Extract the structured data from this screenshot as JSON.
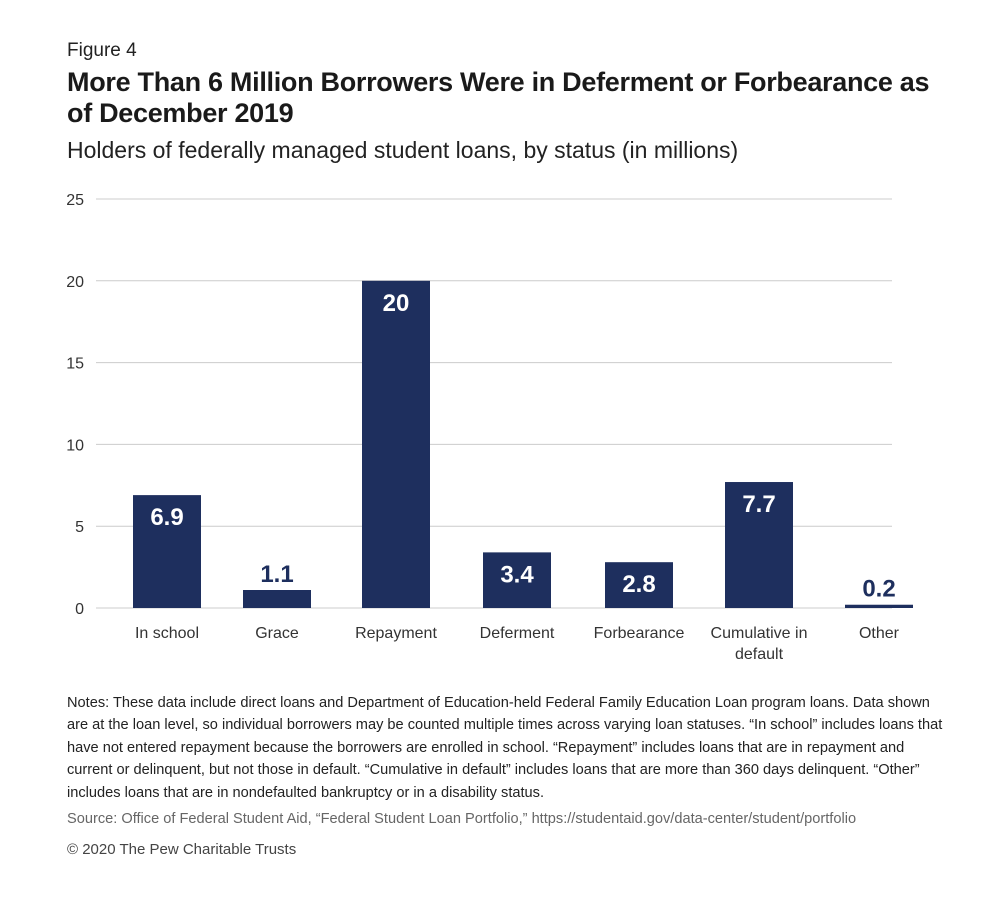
{
  "figure_label": "Figure 4",
  "title": "More Than 6 Million Borrowers Were in Deferment or Forbearance as of December 2019",
  "subtitle": "Holders of federally managed student loans, by status (in millions)",
  "notes": "Notes: These data include direct loans and Department of Education-held Federal Family Education Loan program loans. Data shown are at the loan level, so individual borrowers may be counted multiple times across varying loan statuses. “In school” includes loans that have not entered repayment because the borrowers are enrolled in school. “Repayment” includes loans that are in repayment and current or delinquent, but not those in default. “Cumulative in default” includes loans that are more than 360 days delinquent. “Other” includes loans that are in nondefaulted bankruptcy or in a disability status.",
  "source": "Source: Office of Federal Student Aid, “Federal Student Loan Portfolio,” https://studentaid.gov/data-center/student/portfolio",
  "copyright": "© 2020 The Pew Charitable Trusts",
  "colors": {
    "bar": "#1e2f5e",
    "grid": "#cccccc",
    "label_inside": "#ffffff"
  },
  "chart_data": {
    "type": "bar",
    "categories": [
      "In school",
      "Grace",
      "Repayment",
      "Deferment",
      "Forbearance",
      "Cumulative in default",
      "Other"
    ],
    "category_lines": [
      [
        "In school"
      ],
      [
        "Grace"
      ],
      [
        "Repayment"
      ],
      [
        "Deferment"
      ],
      [
        "Forbearance"
      ],
      [
        "Cumulative in",
        "default"
      ],
      [
        "Other"
      ]
    ],
    "values": [
      6.9,
      1.1,
      20,
      3.4,
      2.8,
      7.7,
      0.2
    ],
    "data_labels": [
      "6.9",
      "1.1",
      "20",
      "3.4",
      "2.8",
      "7.7",
      "0.2"
    ],
    "ylim": [
      0,
      25
    ],
    "yticks": [
      0,
      5,
      10,
      15,
      20,
      25
    ],
    "grid": true,
    "xlabel": "",
    "ylabel": ""
  }
}
